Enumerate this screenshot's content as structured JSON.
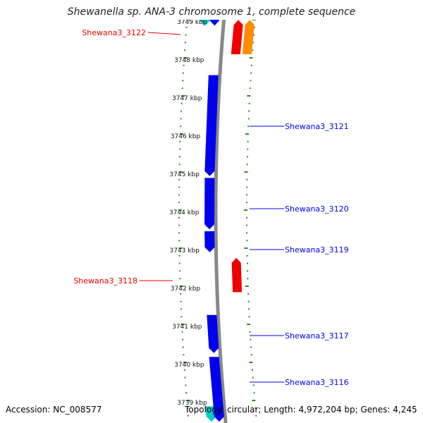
{
  "title": "Shewanella sp. ANA-3 chromosome 1, complete sequence",
  "footer": {
    "accession": "Accession: NC_008577",
    "topology": "Topology: circular; Length: 4,972,204 bp; Genes: 4,245"
  },
  "colors": {
    "backbone": "#888888",
    "tick": "#2a8a2a",
    "reverse_gene": "#0000ee",
    "forward_gene": "#ee0000",
    "forward_gene_alt": "#ff8c00",
    "edge_feature": "#00cccc"
  },
  "ruler": {
    "unit": "kbp",
    "labels": [
      {
        "kbp": 3749,
        "text": "3749 kbp"
      },
      {
        "kbp": 3748,
        "text": "3748 kbp"
      },
      {
        "kbp": 3747,
        "text": "3747 kbp"
      },
      {
        "kbp": 3746,
        "text": "3746 kbp"
      },
      {
        "kbp": 3745,
        "text": "3745 kbp"
      },
      {
        "kbp": 3744,
        "text": "3744 kbp"
      },
      {
        "kbp": 3743,
        "text": "3743 kbp"
      },
      {
        "kbp": 3742,
        "text": "3742 kbp"
      },
      {
        "kbp": 3741,
        "text": "3741 kbp"
      },
      {
        "kbp": 3740,
        "text": "3740 kbp"
      },
      {
        "kbp": 3739,
        "text": "3739 kbp"
      }
    ]
  },
  "genes": [
    {
      "name": "Shewana3_3122",
      "strand": "forward",
      "color_key": "forward_gene",
      "start_kbp": 3748.15,
      "end_kbp": 3749.05
    },
    {
      "name": "Shewana3_3121",
      "strand": "reverse",
      "color_key": "reverse_gene",
      "start_kbp": 3744.95,
      "end_kbp": 3747.6
    },
    {
      "name": "Shewana3_3120",
      "strand": "reverse",
      "color_key": "reverse_gene",
      "start_kbp": 3743.55,
      "end_kbp": 3744.9
    },
    {
      "name": "Shewana3_3119",
      "strand": "reverse",
      "color_key": "reverse_gene",
      "start_kbp": 3742.95,
      "end_kbp": 3743.5
    },
    {
      "name": "Shewana3_3118",
      "strand": "forward",
      "color_key": "forward_gene",
      "start_kbp": 3741.9,
      "end_kbp": 3742.8
    },
    {
      "name": "Shewana3_3117",
      "strand": "reverse",
      "color_key": "reverse_gene",
      "start_kbp": 3740.3,
      "end_kbp": 3741.3
    },
    {
      "name": "Shewana3_3116",
      "strand": "reverse",
      "color_key": "reverse_gene",
      "start_kbp": 3738.5,
      "end_kbp": 3740.2
    }
  ],
  "unlabeled_features": [
    {
      "strand": "forward",
      "color_key": "forward_gene_alt",
      "start_kbp": 3748.15,
      "end_kbp": 3749.05
    },
    {
      "strand": "reverse",
      "color_key": "reverse_gene",
      "start_kbp": 3748.9,
      "end_kbp": 3749.5
    },
    {
      "strand": "reverse",
      "color_key": "edge_feature",
      "start_kbp": 3748.9,
      "end_kbp": 3749.5
    },
    {
      "strand": "reverse",
      "color_key": "edge_feature",
      "start_kbp": 3738.5,
      "end_kbp": 3738.9
    }
  ]
}
